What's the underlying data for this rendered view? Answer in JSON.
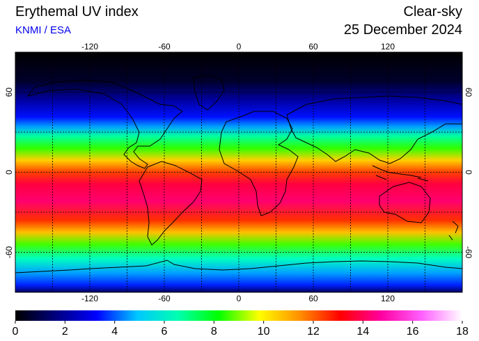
{
  "header": {
    "title": "Erythemal UV index",
    "credit": "KNMI / ESA",
    "mode": "Clear-sky",
    "date": "25 December 2024"
  },
  "map": {
    "projection": "equirectangular",
    "lon_range": [
      -180,
      180
    ],
    "lat_range": [
      -90,
      90
    ],
    "grid_step_deg": 30,
    "lon_tick_labels": [
      "-120",
      "-60",
      "0",
      "60",
      "120"
    ],
    "lat_tick_labels": [
      "60",
      "0",
      "-60"
    ]
  },
  "colorbar": {
    "min": 0,
    "max": 18,
    "tick_labels": [
      "0",
      "2",
      "4",
      "6",
      "8",
      "10",
      "12",
      "14",
      "16",
      "18"
    ],
    "colors": [
      "#000000",
      "#000080",
      "#0000ff",
      "#00c8ff",
      "#00ffb0",
      "#00ff00",
      "#ffff00",
      "#ff9000",
      "#ff0000",
      "#ff00a0",
      "#ff60ff",
      "#ffffff"
    ]
  }
}
